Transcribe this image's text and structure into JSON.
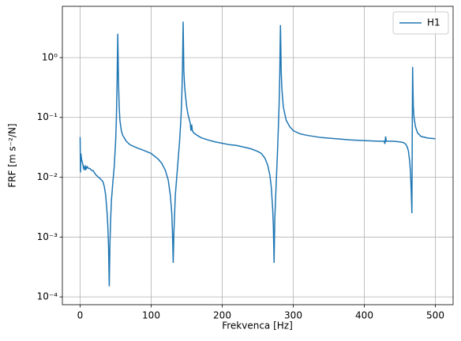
{
  "chart_data": {
    "type": "line",
    "log_y": true,
    "grid": true,
    "legend": "upper right",
    "xlabel": "Frekvenca [Hz]",
    "ylabel": "FRF [m s⁻²/N]",
    "xlim": [
      -25,
      525
    ],
    "ylim": [
      7.4e-05,
      7.2
    ],
    "xticks": [
      0,
      100,
      200,
      300,
      400,
      500
    ],
    "yticks": [
      {
        "value": 0.0001,
        "label": "10⁻⁴"
      },
      {
        "value": 0.001,
        "label": "10⁻³"
      },
      {
        "value": 0.01,
        "label": "10⁻²"
      },
      {
        "value": 0.1,
        "label": "10⁻¹"
      },
      {
        "value": 1,
        "label": "10⁰"
      }
    ],
    "x": [
      0,
      0.5,
      1,
      2,
      3,
      4,
      5,
      6,
      7,
      8,
      9,
      10,
      12,
      14,
      16,
      18,
      20,
      22,
      24,
      26,
      28,
      30,
      32,
      34,
      36,
      38,
      39,
      40,
      41,
      42,
      43,
      44,
      46,
      48,
      50,
      51,
      52,
      52.5,
      53,
      53.5,
      54,
      55,
      56,
      58,
      60,
      65,
      70,
      80,
      90,
      100,
      110,
      115,
      120,
      124,
      127,
      129,
      130,
      131,
      132,
      134,
      136,
      138,
      140,
      142,
      143,
      144,
      144.5,
      145,
      145.5,
      146,
      147,
      148,
      150,
      152,
      155,
      156,
      157,
      158,
      160,
      165,
      170,
      180,
      190,
      200,
      210,
      220,
      230,
      240,
      250,
      255,
      260,
      264,
      267,
      269,
      271,
      272,
      273,
      274,
      276,
      278,
      280,
      281,
      281.5,
      282,
      282.5,
      283,
      284,
      286,
      290,
      295,
      300,
      310,
      320,
      340,
      360,
      380,
      400,
      420,
      428,
      429,
      430,
      431,
      440,
      450,
      455,
      458,
      460,
      462,
      464,
      465,
      466,
      466.5,
      467,
      467.5,
      468,
      468.5,
      469,
      470,
      472,
      475,
      480,
      490,
      500
    ],
    "series": [
      {
        "name": "H1",
        "color": "#1f77b4",
        "values": [
          0.047,
          0.012,
          0.025,
          0.02,
          0.018,
          0.016,
          0.014,
          0.015,
          0.013,
          0.015,
          0.014,
          0.015,
          0.014,
          0.014,
          0.013,
          0.013,
          0.012,
          0.011,
          0.0105,
          0.01,
          0.0095,
          0.009,
          0.0085,
          0.007,
          0.005,
          0.0025,
          0.0015,
          0.0007,
          0.00015,
          0.0008,
          0.002,
          0.004,
          0.008,
          0.015,
          0.04,
          0.09,
          0.35,
          1.0,
          2.5,
          1.0,
          0.4,
          0.15,
          0.09,
          0.06,
          0.05,
          0.04,
          0.035,
          0.031,
          0.028,
          0.025,
          0.02,
          0.017,
          0.013,
          0.009,
          0.005,
          0.0025,
          0.0012,
          0.00037,
          0.0012,
          0.005,
          0.01,
          0.02,
          0.04,
          0.1,
          0.2,
          0.6,
          1.5,
          4.0,
          1.5,
          0.6,
          0.35,
          0.25,
          0.15,
          0.11,
          0.08,
          0.06,
          0.076,
          0.06,
          0.055,
          0.05,
          0.046,
          0.042,
          0.039,
          0.037,
          0.035,
          0.034,
          0.032,
          0.03,
          0.027,
          0.025,
          0.021,
          0.016,
          0.011,
          0.007,
          0.003,
          0.0015,
          0.00037,
          0.002,
          0.008,
          0.03,
          0.15,
          0.5,
          1.5,
          3.5,
          1.5,
          0.6,
          0.3,
          0.15,
          0.09,
          0.07,
          0.06,
          0.053,
          0.05,
          0.046,
          0.044,
          0.042,
          0.041,
          0.04,
          0.04,
          0.036,
          0.048,
          0.04,
          0.04,
          0.039,
          0.038,
          0.036,
          0.033,
          0.028,
          0.018,
          0.012,
          0.006,
          0.004,
          0.0025,
          0.05,
          0.7,
          0.3,
          0.15,
          0.1,
          0.07,
          0.055,
          0.048,
          0.045,
          0.044
        ]
      }
    ]
  }
}
